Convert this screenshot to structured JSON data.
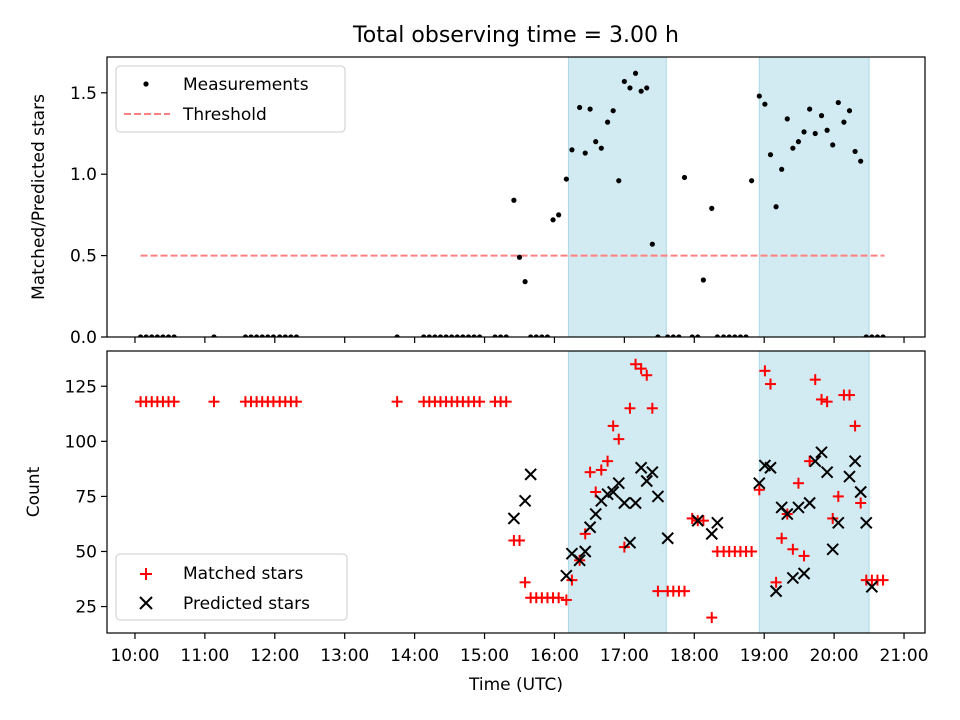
{
  "title": "Total observing time = 3.00 h",
  "colors": {
    "measurement": "#000000",
    "threshold": "#ff8080",
    "matched": "#ff0000",
    "predicted": "#000000",
    "shade": "#add8e6"
  },
  "chart_data": [
    {
      "type": "scatter",
      "title": "Total observing time = 3.00 h",
      "xlabel": "",
      "ylabel": "Matched/Predicted stars",
      "xlim": [
        9.6,
        21.3
      ],
      "ylim": [
        0,
        1.72
      ],
      "yticks": [
        0.0,
        0.5,
        1.0,
        1.5
      ],
      "ytick_labels": [
        "0.0",
        "0.5",
        "1.0",
        "1.5"
      ],
      "xticks": [
        10,
        11,
        12,
        13,
        14,
        15,
        16,
        17,
        18,
        19,
        20,
        21
      ],
      "xtick_labels_shown": false,
      "shaded_intervals": [
        [
          16.2,
          17.6
        ],
        [
          18.93,
          20.5
        ]
      ],
      "legend": {
        "position": "upper left",
        "entries": [
          "Measurements",
          "Threshold"
        ]
      },
      "threshold": {
        "name": "Threshold",
        "y": 0.5,
        "x_range": [
          10.08,
          20.72
        ],
        "style": "dashed"
      },
      "series": [
        {
          "name": "Measurements",
          "marker": "dot",
          "x": [
            10.08,
            10.16,
            10.24,
            10.32,
            10.4,
            10.48,
            10.56,
            11.13,
            11.58,
            11.66,
            11.74,
            11.82,
            11.9,
            11.98,
            12.07,
            12.15,
            12.23,
            12.31,
            13.75,
            14.13,
            14.21,
            14.29,
            14.37,
            14.45,
            14.53,
            14.61,
            14.69,
            14.77,
            14.85,
            14.93,
            15.15,
            15.23,
            15.31,
            15.42,
            15.5,
            15.58,
            15.66,
            15.74,
            15.82,
            15.9,
            15.98,
            16.06,
            16.17,
            16.25,
            16.36,
            16.44,
            16.51,
            16.59,
            16.67,
            16.76,
            16.84,
            16.92,
            17.0,
            17.08,
            17.16,
            17.24,
            17.32,
            17.4,
            17.48,
            17.62,
            17.7,
            17.78,
            17.86,
            17.97,
            18.05,
            18.13,
            18.25,
            18.33,
            18.42,
            18.5,
            18.58,
            18.66,
            18.74,
            18.82,
            18.93,
            19.01,
            19.09,
            19.17,
            19.25,
            19.33,
            19.41,
            19.49,
            19.57,
            19.65,
            19.73,
            19.82,
            19.9,
            19.98,
            20.06,
            20.14,
            20.22,
            20.3,
            20.38,
            20.46,
            20.54,
            20.62,
            20.7
          ],
          "y": [
            0,
            0,
            0,
            0,
            0,
            0,
            0,
            0,
            0,
            0,
            0,
            0,
            0,
            0,
            0,
            0,
            0,
            0,
            0,
            0,
            0,
            0,
            0,
            0,
            0,
            0,
            0,
            0,
            0,
            0,
            0,
            0,
            0,
            0.84,
            0.49,
            0.34,
            0,
            0,
            0,
            0,
            0.72,
            0.75,
            0.97,
            1.15,
            1.41,
            1.13,
            1.4,
            1.2,
            1.16,
            1.32,
            1.39,
            0.96,
            1.57,
            1.53,
            1.62,
            1.51,
            1.53,
            0.57,
            0,
            0,
            0,
            0,
            0.98,
            0,
            0,
            0.35,
            0.79,
            0,
            0,
            0,
            0,
            0,
            0,
            0.96,
            1.48,
            1.43,
            1.12,
            0.8,
            1.03,
            1.34,
            1.16,
            1.2,
            1.26,
            1.4,
            1.25,
            1.36,
            1.27,
            1.18,
            1.44,
            1.32,
            1.39,
            1.14,
            1.08,
            0,
            0,
            0,
            0
          ]
        }
      ]
    },
    {
      "type": "scatter",
      "title": "",
      "xlabel": "Time (UTC)",
      "ylabel": "Count",
      "xlim": [
        9.6,
        21.3
      ],
      "ylim": [
        13,
        141
      ],
      "yticks": [
        25,
        50,
        75,
        100,
        125
      ],
      "ytick_labels": [
        "25",
        "50",
        "75",
        "100",
        "125"
      ],
      "xticks": [
        10,
        11,
        12,
        13,
        14,
        15,
        16,
        17,
        18,
        19,
        20,
        21
      ],
      "xtick_labels": [
        "10:00",
        "11:00",
        "12:00",
        "13:00",
        "14:00",
        "15:00",
        "16:00",
        "17:00",
        "18:00",
        "19:00",
        "20:00",
        "21:00"
      ],
      "shaded_intervals": [
        [
          16.2,
          17.6
        ],
        [
          18.93,
          20.5
        ]
      ],
      "legend": {
        "position": "lower left",
        "entries": [
          "Matched stars",
          "Predicted stars"
        ]
      },
      "series": [
        {
          "name": "Matched stars",
          "marker": "plus",
          "x": [
            10.08,
            10.16,
            10.24,
            10.32,
            10.4,
            10.48,
            10.56,
            11.13,
            11.58,
            11.66,
            11.74,
            11.82,
            11.9,
            11.98,
            12.07,
            12.15,
            12.23,
            12.31,
            13.75,
            14.13,
            14.21,
            14.29,
            14.37,
            14.45,
            14.53,
            14.61,
            14.69,
            14.77,
            14.85,
            14.93,
            15.15,
            15.23,
            15.31,
            15.42,
            15.5,
            15.58,
            15.66,
            15.74,
            15.82,
            15.9,
            15.98,
            16.06,
            16.17,
            16.25,
            16.36,
            16.44,
            16.51,
            16.59,
            16.67,
            16.76,
            16.84,
            16.92,
            17.0,
            17.08,
            17.16,
            17.24,
            17.32,
            17.4,
            17.48,
            17.62,
            17.7,
            17.78,
            17.86,
            17.97,
            18.05,
            18.13,
            18.25,
            18.33,
            18.42,
            18.5,
            18.58,
            18.66,
            18.74,
            18.82,
            18.93,
            19.01,
            19.09,
            19.17,
            19.25,
            19.33,
            19.41,
            19.49,
            19.57,
            19.65,
            19.73,
            19.82,
            19.9,
            19.98,
            20.06,
            20.14,
            20.22,
            20.3,
            20.38,
            20.46,
            20.54,
            20.62,
            20.7
          ],
          "y": [
            118,
            118,
            118,
            118,
            118,
            118,
            118,
            118,
            118,
            118,
            118,
            118,
            118,
            118,
            118,
            118,
            118,
            118,
            118,
            118,
            118,
            118,
            118,
            118,
            118,
            118,
            118,
            118,
            118,
            118,
            118,
            118,
            118,
            55,
            55,
            36,
            29,
            29,
            29,
            29,
            29,
            29,
            28,
            37,
            46,
            58,
            86,
            77,
            87,
            91,
            107,
            101,
            52,
            115,
            135,
            133,
            130,
            115,
            32,
            32,
            32,
            32,
            32,
            65,
            64,
            64,
            20,
            50,
            50,
            50,
            50,
            50,
            50,
            50,
            78,
            132,
            126,
            36,
            56,
            67,
            51,
            81,
            48,
            91,
            128,
            119,
            118,
            65,
            75,
            121,
            121,
            107,
            72,
            37,
            37,
            37,
            37
          ]
        },
        {
          "name": "Predicted stars",
          "marker": "x",
          "x": [
            15.42,
            15.58,
            15.66,
            16.17,
            16.25,
            16.36,
            16.44,
            16.51,
            16.59,
            16.67,
            16.76,
            16.84,
            16.92,
            17.0,
            17.08,
            17.16,
            17.24,
            17.32,
            17.4,
            17.48,
            17.62,
            18.05,
            18.25,
            18.33,
            18.93,
            19.01,
            19.09,
            19.17,
            19.25,
            19.33,
            19.41,
            19.49,
            19.57,
            19.65,
            19.73,
            19.82,
            19.9,
            19.98,
            20.06,
            20.22,
            20.3,
            20.38,
            20.46,
            20.54
          ],
          "y": [
            65,
            73,
            85,
            39,
            49,
            46,
            50,
            61,
            67,
            73,
            76,
            77,
            81,
            72,
            54,
            72,
            88,
            82,
            86,
            75,
            56,
            64,
            58,
            63,
            81,
            89,
            88,
            32,
            70,
            67,
            38,
            70,
            40,
            72,
            91,
            95,
            86,
            51,
            63,
            84,
            91,
            77,
            63,
            34
          ]
        }
      ]
    }
  ]
}
